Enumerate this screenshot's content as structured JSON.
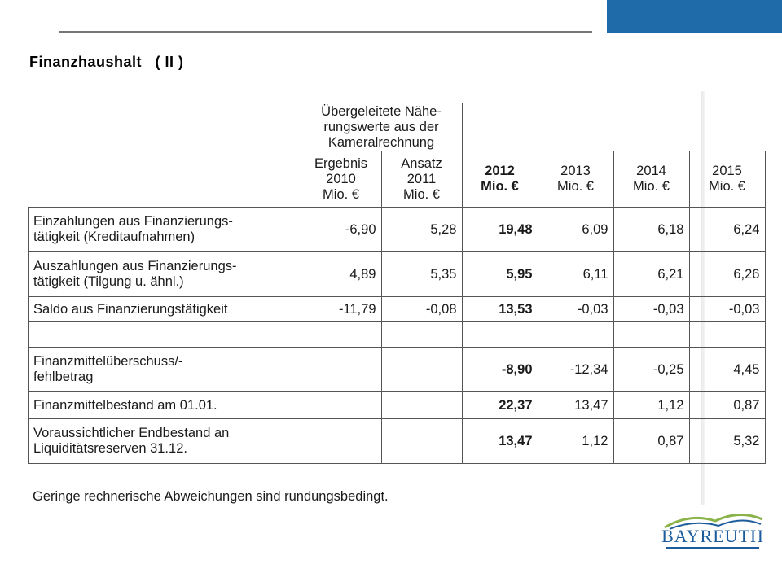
{
  "slide": {
    "title": "Finanzhaushalt   ( II )"
  },
  "table": {
    "group_header": [
      "Übergeleitete Nähe-",
      "rungswerte aus der",
      "Kameralrechnung"
    ],
    "columns": [
      {
        "lines": [
          "Ergebnis",
          "2010",
          "Mio. €"
        ],
        "bold": false
      },
      {
        "lines": [
          "Ansatz",
          "2011",
          "Mio. €"
        ],
        "bold": false
      },
      {
        "lines": [
          "2012",
          "Mio. €"
        ],
        "bold": true
      },
      {
        "lines": [
          "2013",
          "Mio. €"
        ],
        "bold": false
      },
      {
        "lines": [
          "2014",
          "Mio. €"
        ],
        "bold": false
      },
      {
        "lines": [
          "2015",
          "Mio. €"
        ],
        "bold": false
      }
    ],
    "rows": [
      {
        "label": [
          "Einzahlungen aus Finanzierungs-",
          "tätigkeit (Kreditaufnahmen)"
        ],
        "values": [
          "-6,90",
          "5,28",
          "19,48",
          "6,09",
          "6,18",
          "6,24"
        ]
      },
      {
        "label": [
          "Auszahlungen aus Finanzierungs-",
          "tätigkeit (Tilgung u. ähnl.)"
        ],
        "values": [
          "4,89",
          "5,35",
          "5,95",
          "6,11",
          "6,21",
          "6,26"
        ]
      },
      {
        "label": [
          "Saldo aus Finanzierungstätigkeit"
        ],
        "values": [
          "-11,79",
          "-0,08",
          "13,53",
          "-0,03",
          "-0,03",
          "-0,03"
        ]
      },
      {
        "label": [
          ""
        ],
        "values": [
          "",
          "",
          "",
          "",
          "",
          ""
        ]
      },
      {
        "label": [
          "Finanzmittelüberschuss/-",
          "fehlbetrag"
        ],
        "values": [
          "",
          "",
          "-8,90",
          "-12,34",
          "-0,25",
          "4,45"
        ]
      },
      {
        "label": [
          "Finanzmittelbestand am 01.01."
        ],
        "values": [
          "",
          "",
          "22,37",
          "13,47",
          "1,12",
          "0,87"
        ]
      },
      {
        "label": [
          "Voraussichtlicher Endbestand an",
          "Liquiditätsreserven 31.12."
        ],
        "values": [
          "",
          "",
          "13,47",
          "1,12",
          "0,87",
          "5,32"
        ]
      }
    ]
  },
  "footnote": "Geringe rechnerische Abweichungen sind rundungsbedingt.",
  "logo": {
    "text": "BAYREUTH"
  },
  "colors": {
    "accent": "#1f6aa8",
    "logo": "#1d5c9c",
    "logo_arc": "#8ab34a"
  }
}
